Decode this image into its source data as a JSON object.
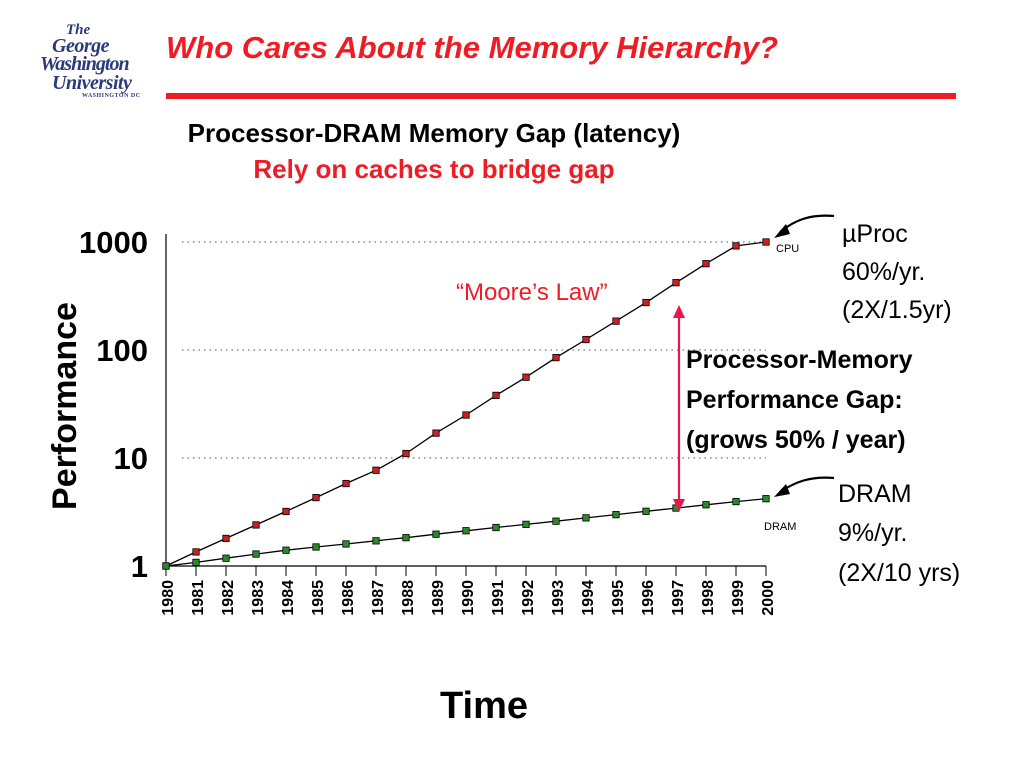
{
  "slide": {
    "title": "Who Cares About the Memory Hierarchy?",
    "logo": {
      "line1": "The",
      "line2": "George",
      "line3": "Washington",
      "line4": "University",
      "line5": "WASHINGTON DC"
    },
    "subtitle": "Processor-DRAM Memory Gap (latency)",
    "subtitle2": "Rely on caches to bridge gap"
  },
  "annotations": {
    "moores_law": "“Moore’s Law”",
    "cpu_small": "CPU",
    "dram_small": "DRAM",
    "uproc_lines": [
      "µProc",
      "60%/yr.",
      "(2X/1.5yr)"
    ],
    "dram_lines": [
      "DRAM",
      "9%/yr.",
      "(2X/10 yrs)"
    ],
    "gap_lines": [
      "Processor-Memory",
      "Performance Gap:",
      "(grows 50% / year)"
    ]
  },
  "colors": {
    "title_red": "#ee1c25",
    "cpu_marker": "#cc2020",
    "dram_marker": "#2a8a2a",
    "gap_arrow": "#e8174a"
  },
  "chart_data": {
    "type": "line",
    "x": [
      1980,
      1981,
      1982,
      1983,
      1984,
      1985,
      1986,
      1987,
      1988,
      1989,
      1990,
      1991,
      1992,
      1993,
      1994,
      1995,
      1996,
      1997,
      1998,
      1999,
      2000
    ],
    "x_tick_labels": [
      "1980",
      "1981",
      "1982",
      "1983",
      "1984",
      "1985",
      "1986",
      "1987",
      "1988",
      "1989",
      "1990",
      "1991",
      "1992",
      "1993",
      "1994",
      "1995",
      "1996",
      "1997",
      "1998",
      "1999",
      "2000"
    ],
    "y_scale": "log",
    "ylim": [
      1,
      1000
    ],
    "y_ticks": [
      1,
      10,
      100,
      1000
    ],
    "y_tick_labels": [
      "1",
      "10",
      "100",
      "1000"
    ],
    "xlabel": "Time",
    "ylabel": "Performance",
    "grid": "dotted horizontal at 10, 100, 1000",
    "series": [
      {
        "name": "CPU",
        "values": [
          1,
          1.35,
          1.8,
          2.4,
          3.2,
          4.3,
          5.8,
          7.7,
          11,
          17,
          25,
          38,
          56,
          85,
          125,
          185,
          275,
          420,
          630,
          920,
          1000
        ]
      },
      {
        "name": "DRAM",
        "values": [
          1,
          1.08,
          1.18,
          1.29,
          1.4,
          1.5,
          1.6,
          1.71,
          1.83,
          1.97,
          2.12,
          2.27,
          2.43,
          2.6,
          2.79,
          2.99,
          3.21,
          3.44,
          3.69,
          3.95,
          4.2
        ]
      }
    ]
  }
}
